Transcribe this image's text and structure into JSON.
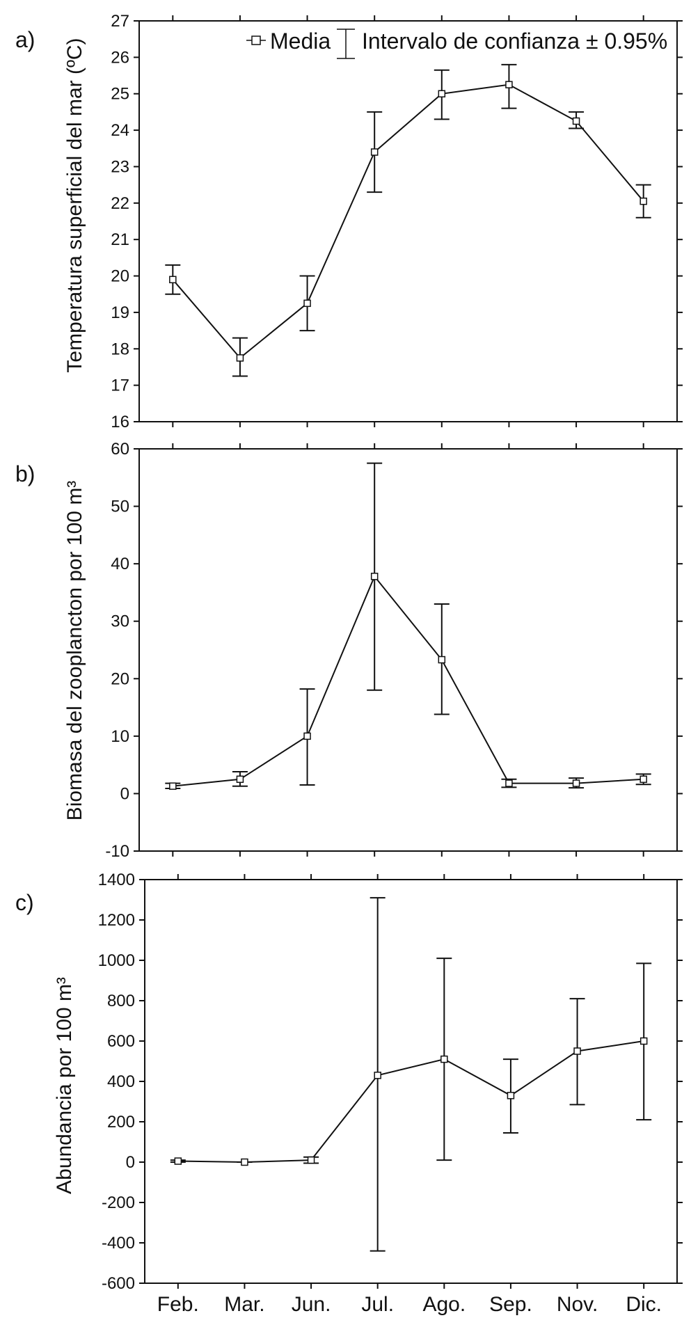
{
  "legend": {
    "mean_label": "Media",
    "ci_label": "Intervalo de confianza ± 0.95%"
  },
  "colors": {
    "line": "#111111",
    "background": "#ffffff",
    "marker_fill": "#ffffff"
  },
  "chart_data": [
    {
      "type": "line",
      "panel": "a)",
      "ylabel": "Temperatura superficial del mar (ºC)",
      "categories": [
        "Feb.",
        "Mar.",
        "Jun.",
        "Jul.",
        "Ago.",
        "Sep.",
        "Nov.",
        "Dic."
      ],
      "ylim": [
        16,
        27
      ],
      "yticks": [
        16,
        17,
        18,
        19,
        20,
        21,
        22,
        23,
        24,
        25,
        26,
        27
      ],
      "series": [
        {
          "name": "Media",
          "values": [
            19.9,
            17.75,
            19.25,
            23.4,
            25.0,
            25.25,
            24.25,
            22.05
          ],
          "ci_low": [
            19.5,
            17.25,
            18.5,
            22.3,
            24.3,
            24.6,
            24.05,
            21.6
          ],
          "ci_high": [
            20.3,
            18.3,
            20.0,
            24.5,
            25.65,
            25.8,
            24.5,
            22.5
          ]
        }
      ]
    },
    {
      "type": "line",
      "panel": "b)",
      "ylabel": "Biomasa del zooplancton por 100 m³",
      "categories": [
        "Feb.",
        "Mar.",
        "Jun.",
        "Jul.",
        "Ago.",
        "Sep.",
        "Nov.",
        "Dic."
      ],
      "ylim": [
        -10,
        60
      ],
      "yticks": [
        -10,
        0,
        10,
        20,
        30,
        40,
        50,
        60
      ],
      "series": [
        {
          "name": "Media",
          "values": [
            1.3,
            2.5,
            10.0,
            37.8,
            23.3,
            1.8,
            1.8,
            2.5
          ],
          "ci_low": [
            0.9,
            1.3,
            1.5,
            18.0,
            13.8,
            1.1,
            1.0,
            1.6
          ],
          "ci_high": [
            1.8,
            3.8,
            18.2,
            57.5,
            33.0,
            2.5,
            2.7,
            3.4
          ]
        }
      ]
    },
    {
      "type": "line",
      "panel": "c)",
      "ylabel": "Abundancia por 100 m³",
      "categories": [
        "Feb.",
        "Mar.",
        "Jun.",
        "Jul.",
        "Ago.",
        "Sep.",
        "Nov.",
        "Dic."
      ],
      "ylim": [
        -600,
        1400
      ],
      "yticks": [
        -600,
        -400,
        -200,
        0,
        200,
        400,
        600,
        800,
        1000,
        1200,
        1400
      ],
      "series": [
        {
          "name": "Media",
          "values": [
            5,
            0,
            10,
            430,
            510,
            330,
            550,
            600
          ],
          "ci_low": [
            0,
            0,
            -5,
            -440,
            10,
            145,
            285,
            210
          ],
          "ci_high": [
            10,
            0,
            25,
            1310,
            1010,
            510,
            810,
            985
          ]
        }
      ]
    }
  ]
}
